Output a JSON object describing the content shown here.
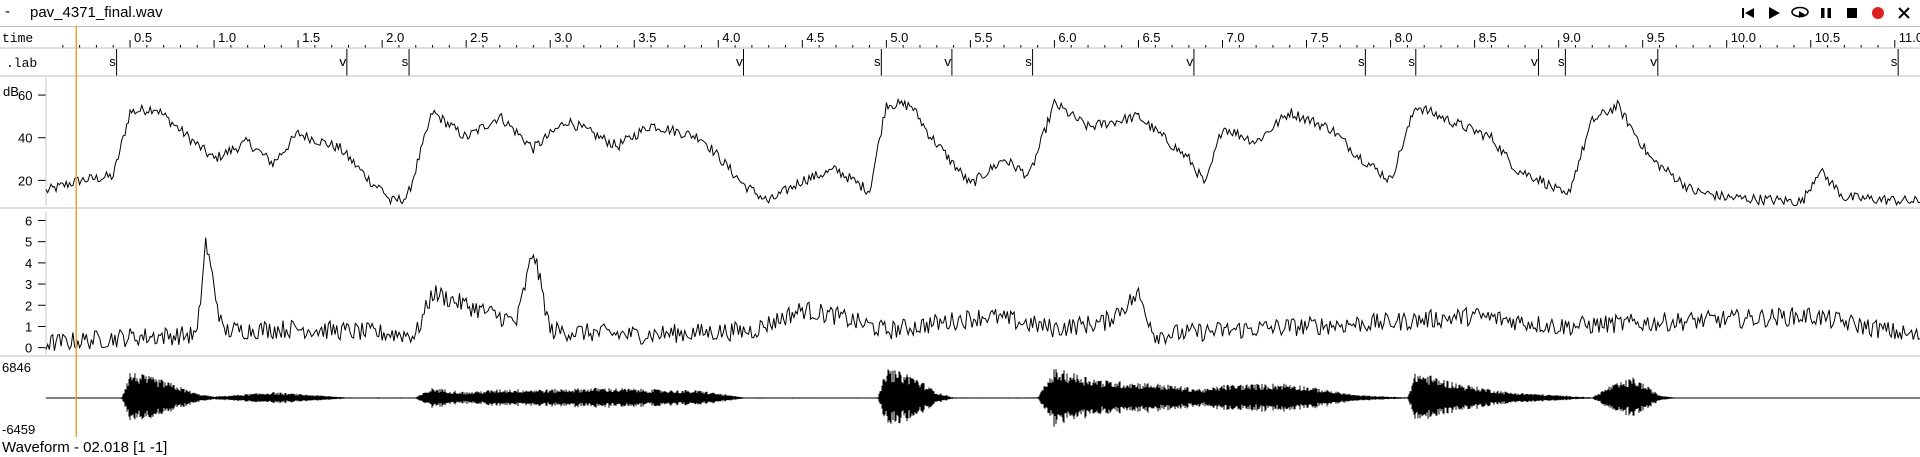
{
  "window": {
    "menu_glyph": "-",
    "title": "pav_4371_final.wav"
  },
  "controls": [
    {
      "name": "skip-start-icon",
      "label": "go to start"
    },
    {
      "name": "play-icon",
      "label": "play"
    },
    {
      "name": "loop-play-icon",
      "label": "loop play"
    },
    {
      "name": "pause-icon",
      "label": "pause"
    },
    {
      "name": "stop-icon",
      "label": "stop"
    },
    {
      "name": "record-icon",
      "label": "record"
    },
    {
      "name": "close-icon",
      "label": "close"
    }
  ],
  "colors": {
    "cursor": "#f0a030",
    "record": "#e02020",
    "trace": "#000000",
    "grid": "#c8c8c8"
  },
  "time_axis": {
    "label": "time",
    "range": [
      0,
      11.15
    ],
    "ticks": [
      "0.5",
      "1.0",
      "1.5",
      "2.0",
      "2.5",
      "3.0",
      "3.5",
      "4.0",
      "4.5",
      "5.0",
      "5.5",
      "6.0",
      "6.5",
      "7.0",
      "7.5",
      "8.0",
      "8.5",
      "9.0",
      "9.5",
      "10.0",
      "10.5",
      "11.0"
    ],
    "tick_values": [
      0.5,
      1.0,
      1.5,
      2.0,
      2.5,
      3.0,
      3.5,
      4.0,
      4.5,
      5.0,
      5.5,
      6.0,
      6.5,
      7.0,
      7.5,
      8.0,
      8.5,
      9.0,
      9.5,
      10.0,
      10.5,
      11.0
    ],
    "cursor_time": 0.18
  },
  "lab_tier": {
    "label": ".lab",
    "marks": [
      {
        "t": 0.42,
        "text": "s"
      },
      {
        "t": 1.79,
        "text": "v"
      },
      {
        "t": 2.16,
        "text": "s"
      },
      {
        "t": 4.15,
        "text": "v"
      },
      {
        "t": 4.97,
        "text": "s"
      },
      {
        "t": 5.39,
        "text": "v"
      },
      {
        "t": 5.87,
        "text": "s"
      },
      {
        "t": 6.83,
        "text": "v"
      },
      {
        "t": 7.85,
        "text": "s"
      },
      {
        "t": 8.15,
        "text": "s"
      },
      {
        "t": 8.88,
        "text": "v"
      },
      {
        "t": 9.04,
        "text": "s"
      },
      {
        "t": 9.59,
        "text": "v"
      },
      {
        "t": 11.02,
        "text": "s"
      }
    ]
  },
  "energy_panel": {
    "unit_label": "dB",
    "ticks": [
      "20",
      "40",
      "60"
    ],
    "tick_values": [
      20,
      40,
      60
    ],
    "range": [
      8,
      68
    ]
  },
  "pitch_panel": {
    "ticks": [
      "0",
      "1",
      "2",
      "3",
      "4",
      "5",
      "6"
    ],
    "tick_values": [
      0,
      1,
      2,
      3,
      4,
      5,
      6
    ],
    "range": [
      -0.3,
      6.4
    ]
  },
  "waveform_panel": {
    "max_label": "6846",
    "min_label": "-6459",
    "range": [
      -6459,
      6846
    ]
  },
  "status": {
    "text": "Waveform - 02.018 [1 -1]"
  }
}
